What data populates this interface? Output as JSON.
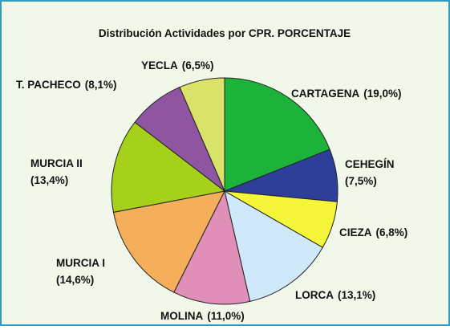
{
  "chart_data": {
    "type": "pie",
    "title": "Distribución Actividades por CPR. PORCENTAJE",
    "categories": [
      "CARTAGENA",
      "CEHEGÍN",
      "CIEZA",
      "LORCA",
      "MOLINA",
      "MURCIA I",
      "MURCIA II",
      "T. PACHECO",
      "YECLA"
    ],
    "values": [
      19.0,
      7.5,
      6.8,
      13.1,
      11.0,
      14.6,
      13.4,
      8.1,
      6.5
    ],
    "value_labels": [
      "(19,0%)",
      "(7,5%)",
      "(6,8%)",
      "(13,1%)",
      "(11,0%)",
      "(14,6%)",
      "(13,4%)",
      "(8,1%)",
      "(6,5%)"
    ],
    "colors": [
      "#1db33a",
      "#2e3f9a",
      "#f5f53a",
      "#cfe8fa",
      "#e08fb8",
      "#f5ae5a",
      "#a6d11a",
      "#8f55a0",
      "#d9e36a"
    ]
  }
}
